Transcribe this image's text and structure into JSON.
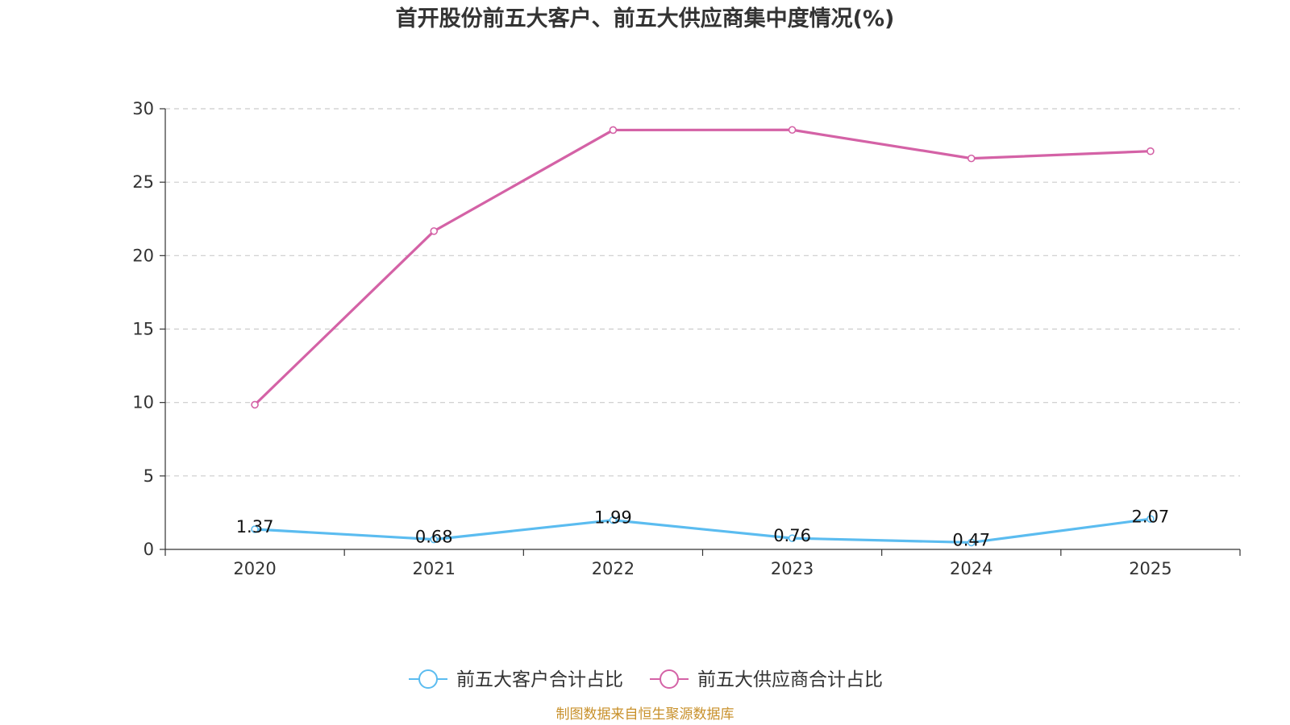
{
  "chart_data": {
    "type": "line",
    "title": "首开股份前五大客户、前五大供应商集中度情况(%)",
    "categories": [
      "2020",
      "2021",
      "2022",
      "2023",
      "2024",
      "2025"
    ],
    "ylim": [
      0,
      30
    ],
    "yticks": [
      0,
      5,
      10,
      15,
      20,
      25,
      30
    ],
    "grid": true,
    "legend_position": "bottom-center",
    "series": [
      {
        "name": "前五大客户合计占比",
        "color": "#5bbcf0",
        "values": [
          1.37,
          0.68,
          1.99,
          0.76,
          0.47,
          2.07
        ],
        "show_labels": true
      },
      {
        "name": "前五大供应商合计占比",
        "color": "#d462a6",
        "values": [
          9.85,
          21.67,
          28.55,
          28.56,
          26.62,
          27.11
        ],
        "show_labels": false
      }
    ]
  },
  "source": "制图数据来自恒生聚源数据库"
}
